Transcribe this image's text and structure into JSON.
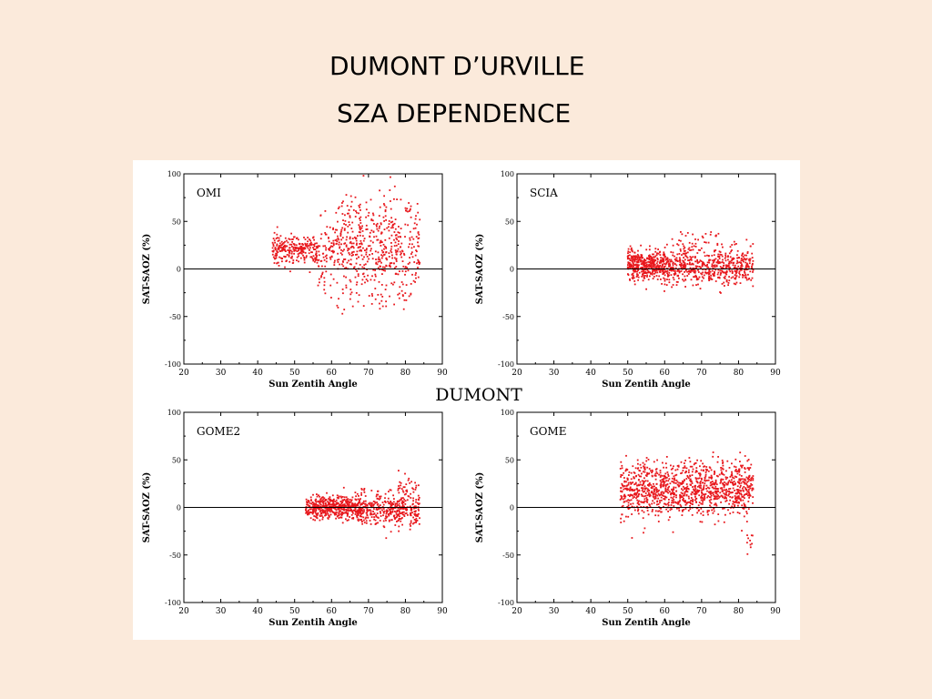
{
  "slide": {
    "title_line1": "DUMONT D’URVILLE",
    "title_line2": "SZA DEPENDENCE"
  },
  "figure": {
    "center_label": "DUMONT"
  },
  "colors": {
    "background": "#fbeadb",
    "points": "#e8181d",
    "axis": "#000000"
  },
  "chart_data": [
    {
      "type": "scatter",
      "panel_label": "OMI",
      "xlabel": "Sun Zentih Angle",
      "ylabel": "SAT-SAOZ (%)",
      "xlim": [
        20,
        90
      ],
      "ylim": [
        -100,
        100
      ],
      "xticks": [
        20,
        30,
        40,
        50,
        60,
        70,
        80,
        90
      ],
      "yticks": [
        100,
        50,
        0,
        -50,
        -100
      ],
      "reference_line_y": 0,
      "series": [
        {
          "color": "#e8181d",
          "clusters": [
            {
              "x": [
                44,
                56
              ],
              "y_center": 21,
              "y_spread": 14,
              "n": 260
            },
            {
              "x": [
                56,
                84
              ],
              "y_center": 20,
              "y_spread": 34,
              "n": 430
            },
            {
              "x": [
                62,
                84
              ],
              "y_center": 55,
              "y_spread": 30,
              "n": 110
            },
            {
              "x": [
                58,
                84
              ],
              "y_center": -20,
              "y_spread": 26,
              "n": 90
            }
          ]
        }
      ]
    },
    {
      "type": "scatter",
      "panel_label": "SCIA",
      "xlabel": "Sun Zentih Angle",
      "ylabel": "SAT-SAOZ (%)",
      "xlim": [
        20,
        90
      ],
      "ylim": [
        -100,
        100
      ],
      "xticks": [
        20,
        30,
        40,
        50,
        60,
        70,
        80,
        90
      ],
      "yticks": [
        100,
        50,
        0,
        -50,
        -100
      ],
      "reference_line_y": 0,
      "series": [
        {
          "color": "#e8181d",
          "clusters": [
            {
              "x": [
                50,
                60
              ],
              "y_center": 5,
              "y_spread": 16,
              "n": 420
            },
            {
              "x": [
                60,
                84
              ],
              "y_center": 2,
              "y_spread": 18,
              "n": 560
            },
            {
              "x": [
                62,
                84
              ],
              "y_center": 25,
              "y_spread": 14,
              "n": 60
            }
          ]
        }
      ]
    },
    {
      "type": "scatter",
      "panel_label": "GOME2",
      "xlabel": "Sun Zentih Angle",
      "ylabel": "SAT-SAOZ (%)",
      "xlim": [
        20,
        90
      ],
      "ylim": [
        -100,
        100
      ],
      "xticks": [
        20,
        30,
        40,
        50,
        60,
        70,
        80,
        90
      ],
      "yticks": [
        100,
        50,
        0,
        -50,
        -100
      ],
      "reference_line_y": 0,
      "series": [
        {
          "color": "#e8181d",
          "clusters": [
            {
              "x": [
                53,
                68
              ],
              "y_center": 0,
              "y_spread": 12,
              "n": 520
            },
            {
              "x": [
                68,
                84
              ],
              "y_center": -2,
              "y_spread": 18,
              "n": 380
            },
            {
              "x": [
                78,
                84
              ],
              "y_center": 22,
              "y_spread": 12,
              "n": 30
            }
          ]
        }
      ]
    },
    {
      "type": "scatter",
      "panel_label": "GOME",
      "xlabel": "Sun Zentih Angle",
      "ylabel": "SAT-SAOZ (%)",
      "xlim": [
        20,
        90
      ],
      "ylim": [
        -100,
        100
      ],
      "xticks": [
        20,
        30,
        40,
        50,
        60,
        70,
        80,
        90
      ],
      "yticks": [
        100,
        50,
        0,
        -50,
        -100
      ],
      "reference_line_y": 0,
      "series": [
        {
          "color": "#e8181d",
          "clusters": [
            {
              "x": [
                48,
                84
              ],
              "y_center": 18,
              "y_spread": 28,
              "n": 1100
            },
            {
              "x": [
                50,
                84
              ],
              "y_center": 40,
              "y_spread": 12,
              "n": 80
            },
            {
              "x": [
                82,
                84
              ],
              "y_center": -35,
              "y_spread": 12,
              "n": 10
            }
          ]
        }
      ]
    }
  ]
}
